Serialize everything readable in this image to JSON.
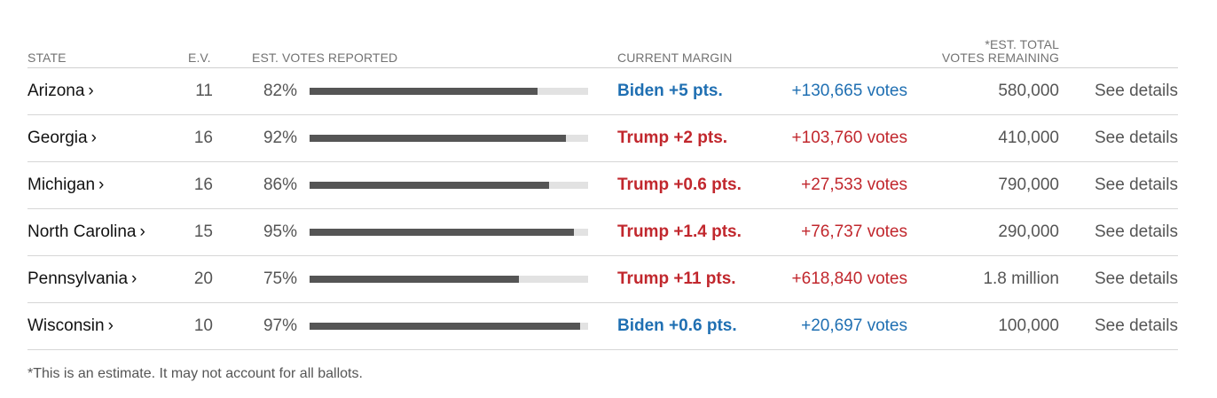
{
  "header": {
    "state": "STATE",
    "ev": "E.V.",
    "votes_reported": "EST. VOTES REPORTED",
    "margin": "CURRENT MARGIN",
    "remaining_line1": "*EST. TOTAL",
    "remaining_line2": "VOTES REMAINING"
  },
  "colors": {
    "dem": "#1f6fb2",
    "rep": "#c1272d",
    "bar_fill": "#555555",
    "bar_track": "#e2e2e2"
  },
  "rows": [
    {
      "state": "Arizona",
      "ev": "11",
      "pct_label": "82%",
      "pct": 82,
      "party": "dem",
      "margin": "Biden +5 pts.",
      "margin_votes": "+130,665 votes",
      "remaining": "580,000",
      "details": "See details"
    },
    {
      "state": "Georgia",
      "ev": "16",
      "pct_label": "92%",
      "pct": 92,
      "party": "rep",
      "margin": "Trump +2 pts.",
      "margin_votes": "+103,760 votes",
      "remaining": "410,000",
      "details": "See details"
    },
    {
      "state": "Michigan",
      "ev": "16",
      "pct_label": "86%",
      "pct": 86,
      "party": "rep",
      "margin": "Trump +0.6 pts.",
      "margin_votes": "+27,533 votes",
      "remaining": "790,000",
      "details": "See details"
    },
    {
      "state": "North Carolina",
      "ev": "15",
      "pct_label": "95%",
      "pct": 95,
      "party": "rep",
      "margin": "Trump +1.4 pts.",
      "margin_votes": "+76,737 votes",
      "remaining": "290,000",
      "details": "See details"
    },
    {
      "state": "Pennsylvania",
      "ev": "20",
      "pct_label": "75%",
      "pct": 75,
      "party": "rep",
      "margin": "Trump +11 pts.",
      "margin_votes": "+618,840 votes",
      "remaining": "1.8 million",
      "details": "See details"
    },
    {
      "state": "Wisconsin",
      "ev": "10",
      "pct_label": "97%",
      "pct": 97,
      "party": "dem",
      "margin": "Biden +0.6 pts.",
      "margin_votes": "+20,697 votes",
      "remaining": "100,000",
      "details": "See details"
    }
  ],
  "chevron": "›",
  "footnote": "*This is an estimate. It may not account for all ballots."
}
